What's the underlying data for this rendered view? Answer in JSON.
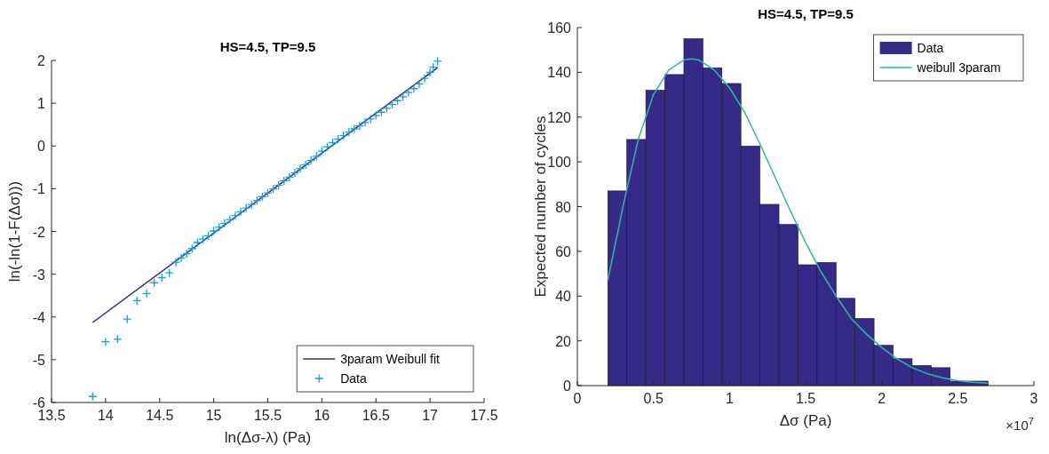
{
  "chart_data": [
    {
      "type": "scatter",
      "title": "HS=4.5, TP=9.5",
      "xlabel": "ln(Δσ-λ) (Pa)",
      "ylabel": "ln(-ln(1-F(Δσ)))",
      "xlim": [
        13.5,
        17.5
      ],
      "xticks": [
        13.5,
        14,
        14.5,
        15,
        15.5,
        16,
        16.5,
        17,
        17.5
      ],
      "ylim": [
        -6,
        2
      ],
      "yticks": [
        -6,
        -5,
        -4,
        -3,
        -2,
        -1,
        0,
        1,
        2
      ],
      "grid": false,
      "legend": "bottom right",
      "series": [
        {
          "name": "3param Weibull fit",
          "type": "line",
          "color": "#2e2a7e",
          "marker": "none",
          "line_style": "solid",
          "x": [
            13.88,
            17.07
          ],
          "values": [
            -4.13,
            1.83
          ]
        },
        {
          "name": "Data",
          "color": "#1a9fd6",
          "marker": "cross",
          "x": [
            13.88,
            14.0,
            14.11,
            14.2,
            14.29,
            14.38,
            14.45,
            14.52,
            14.59,
            14.65,
            14.7,
            14.75,
            14.8,
            14.85,
            14.9,
            14.95,
            15.0,
            15.05,
            15.1,
            15.15,
            15.2,
            15.25,
            15.3,
            15.35,
            15.4,
            15.45,
            15.5,
            15.55,
            15.6,
            15.65,
            15.7,
            15.75,
            15.8,
            15.85,
            15.9,
            15.95,
            16.0,
            16.05,
            16.1,
            16.15,
            16.2,
            16.25,
            16.3,
            16.35,
            16.4,
            16.45,
            16.5,
            16.55,
            16.6,
            16.65,
            16.7,
            16.75,
            16.8,
            16.85,
            16.9,
            16.95,
            17.0,
            17.03,
            17.07
          ],
          "values": [
            -5.86,
            -4.58,
            -4.52,
            -4.05,
            -3.62,
            -3.45,
            -3.2,
            -3.08,
            -2.97,
            -2.72,
            -2.62,
            -2.52,
            -2.4,
            -2.26,
            -2.18,
            -2.1,
            -1.99,
            -1.9,
            -1.81,
            -1.72,
            -1.63,
            -1.54,
            -1.45,
            -1.37,
            -1.28,
            -1.19,
            -1.1,
            -1.01,
            -0.92,
            -0.82,
            -0.73,
            -0.63,
            -0.53,
            -0.44,
            -0.34,
            -0.24,
            -0.12,
            -0.02,
            0.08,
            0.16,
            0.24,
            0.32,
            0.4,
            0.47,
            0.55,
            0.63,
            0.71,
            0.79,
            0.88,
            0.97,
            1.06,
            1.15,
            1.25,
            1.34,
            1.45,
            1.58,
            1.72,
            1.84,
            1.98
          ]
        }
      ]
    },
    {
      "type": "histogram",
      "title": "HS=4.5, TP=9.5",
      "xlabel": "Δσ (Pa)",
      "ylabel": "Expected number of cycles",
      "annotations": [
        "×10$^{7}$"
      ],
      "xlim": [
        0,
        3
      ],
      "xticks": [
        0,
        0.5,
        1,
        1.5,
        2,
        2.5,
        3
      ],
      "ylim": [
        0,
        160
      ],
      "yticks": [
        0,
        20,
        40,
        60,
        80,
        100,
        120,
        140,
        160
      ],
      "grid": false,
      "legend": "top right",
      "bins": [
        0.2,
        0.325,
        0.45,
        0.575,
        0.7,
        0.825,
        0.95,
        1.075,
        1.2,
        1.325,
        1.45,
        1.575,
        1.7,
        1.825,
        1.95,
        2.075,
        2.2,
        2.325,
        2.45,
        2.575,
        2.7
      ],
      "series": [
        {
          "name": "Data",
          "color": "#352a87",
          "values": [
            87,
            110,
            132,
            139,
            155,
            142,
            135,
            107,
            81,
            72,
            54,
            55,
            39,
            30,
            18,
            12,
            9,
            8,
            2,
            2
          ]
        },
        {
          "name": "weibull 3param",
          "type": "line",
          "color": "#2fb9a3",
          "marker": "none",
          "line_style": "solid",
          "x": [
            0.2,
            0.3,
            0.4,
            0.5,
            0.6,
            0.7,
            0.75,
            0.8,
            0.9,
            1.0,
            1.1,
            1.2,
            1.3,
            1.4,
            1.5,
            1.6,
            1.7,
            1.8,
            1.9,
            2.0,
            2.1,
            2.2,
            2.3,
            2.4,
            2.5,
            2.6,
            2.7
          ],
          "values": [
            47,
            80,
            110,
            130,
            141,
            145.5,
            146,
            145.5,
            141,
            133,
            122,
            108,
            93,
            78,
            64,
            51,
            40,
            30,
            23,
            17,
            12,
            8,
            5.3,
            3.5,
            2.2,
            1.5,
            1.1
          ]
        }
      ]
    }
  ]
}
